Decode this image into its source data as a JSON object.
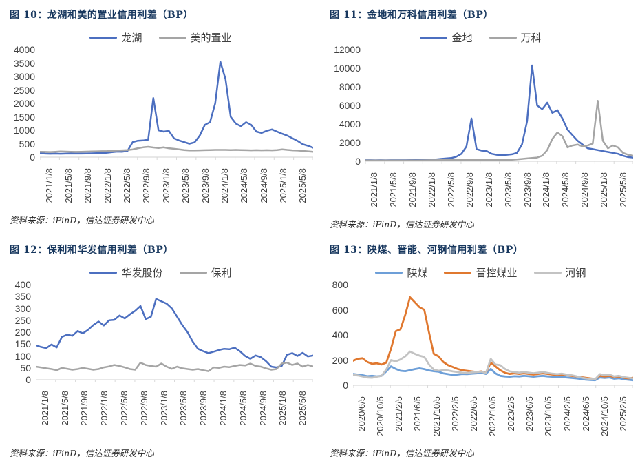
{
  "page": {
    "background": "#FFFFFF"
  },
  "styles": {
    "title_color": "#17375E",
    "axis_line_color": "#D9D9D9",
    "tick_label_color": "#3F3F3F",
    "legend_label_color": "#404040",
    "source_text_color": "#262626"
  },
  "chart_data": [
    {
      "id": "figure-10",
      "type": "line",
      "title": "图 10：龙湖和美的置业信用利差（BP）",
      "source": "资料来源：iFinD，信达证券研发中心",
      "ylabel": "",
      "xlabel": "",
      "ylim": [
        0,
        4000
      ],
      "y_ticks": [
        4000,
        3500,
        3000,
        2500,
        2000,
        1500,
        1000,
        500,
        0
      ],
      "x_labels": [
        "2021/1/8",
        "2021/5/8",
        "2021/9/8",
        "2022/1/8",
        "2022/5/8",
        "2022/9/8",
        "2023/1/8",
        "2023/5/8",
        "2023/9/8",
        "2024/1/8",
        "2024/5/8",
        "2024/9/8",
        "2025/1/8",
        "2025/5/8"
      ],
      "grid": false,
      "legend_position": "top",
      "series": [
        {
          "name": "龙湖",
          "color": "#4C6FC0",
          "values": [
            150,
            130,
            125,
            130,
            125,
            130,
            135,
            130,
            130,
            135,
            140,
            145,
            150,
            165,
            185,
            205,
            200,
            230,
            560,
            610,
            620,
            650,
            2200,
            1000,
            950,
            980,
            700,
            620,
            560,
            500,
            550,
            800,
            1200,
            1300,
            2000,
            3550,
            2900,
            1500,
            1250,
            1150,
            1300,
            1200,
            950,
            900,
            980,
            1030,
            950,
            870,
            800,
            700,
            600,
            480,
            420,
            350
          ]
        },
        {
          "name": "美的置业",
          "color": "#A5A5A5",
          "values": [
            200,
            195,
            190,
            200,
            210,
            205,
            200,
            195,
            200,
            205,
            210,
            215,
            220,
            225,
            235,
            245,
            255,
            265,
            285,
            330,
            365,
            385,
            360,
            340,
            365,
            330,
            310,
            290,
            265,
            250,
            250,
            255,
            260,
            265,
            270,
            270,
            270,
            265,
            270,
            265,
            260,
            255,
            260,
            255,
            260,
            255,
            265,
            290,
            270,
            255,
            245,
            230,
            215,
            200
          ]
        }
      ]
    },
    {
      "id": "figure-11",
      "type": "line",
      "title": "图 11：金地和万科信用利差（BP）",
      "source": "资料来源：iFinD，信达证券研发中心",
      "ylabel": "",
      "xlabel": "",
      "ylim": [
        0,
        12000
      ],
      "y_ticks": [
        12000,
        10000,
        8000,
        6000,
        4000,
        2000,
        0
      ],
      "x_labels": [
        "2021/1/8",
        "2021/5/8",
        "2021/9/8",
        "2022/1/8",
        "2022/5/8",
        "2022/9/8",
        "2023/1/8",
        "2023/5/8",
        "2023/9/8",
        "2024/1/8",
        "2024/5/8",
        "2024/9/8",
        "2025/1/8",
        "2025/5/8"
      ],
      "grid": false,
      "legend_position": "top",
      "series": [
        {
          "name": "金地",
          "color": "#4C6FC0",
          "values": [
            120,
            115,
            110,
            115,
            110,
            115,
            120,
            115,
            120,
            125,
            130,
            140,
            150,
            170,
            200,
            260,
            300,
            350,
            500,
            800,
            1600,
            4600,
            1300,
            1150,
            1100,
            800,
            700,
            650,
            700,
            750,
            900,
            1800,
            4300,
            10300,
            6000,
            5600,
            6300,
            5200,
            5500,
            4600,
            3400,
            2800,
            2200,
            1800,
            1400,
            1300,
            1200,
            1100,
            1000,
            900,
            800,
            600,
            450,
            400
          ]
        },
        {
          "name": "万科",
          "color": "#A5A5A5",
          "values": [
            100,
            95,
            90,
            95,
            90,
            95,
            100,
            95,
            100,
            105,
            100,
            105,
            110,
            115,
            120,
            125,
            130,
            140,
            150,
            160,
            170,
            180,
            170,
            165,
            160,
            150,
            140,
            150,
            160,
            170,
            200,
            250,
            300,
            350,
            400,
            600,
            1200,
            2400,
            3100,
            2700,
            1500,
            1700,
            1800,
            1600,
            1700,
            1900,
            6500,
            2200,
            1400,
            1700,
            1500,
            900,
            700,
            600
          ]
        }
      ]
    },
    {
      "id": "figure-12",
      "type": "line",
      "title": "图 12：保利和华发信用利差（BP）",
      "source": "资料来源：iFinD，信达证券研发中心",
      "ylabel": "",
      "xlabel": "",
      "ylim": [
        0,
        400
      ],
      "y_ticks": [
        400,
        350,
        300,
        250,
        200,
        150,
        100,
        50,
        0
      ],
      "x_labels": [
        "2021/1/8",
        "2021/5/8",
        "2021/9/8",
        "2022/1/8",
        "2022/5/8",
        "2022/9/8",
        "2023/1/8",
        "2023/5/8",
        "2023/9/8",
        "2024/1/8",
        "2024/5/8",
        "2024/9/8",
        "2025/1/8",
        "2025/5/8"
      ],
      "grid": false,
      "legend_position": "top",
      "series": [
        {
          "name": "华发股份",
          "color": "#4C6FC0",
          "values": [
            145,
            138,
            133,
            148,
            136,
            180,
            190,
            185,
            205,
            195,
            210,
            230,
            245,
            228,
            250,
            252,
            270,
            258,
            275,
            290,
            310,
            255,
            265,
            340,
            330,
            320,
            300,
            265,
            230,
            200,
            160,
            130,
            120,
            112,
            118,
            125,
            130,
            128,
            135,
            120,
            100,
            88,
            102,
            95,
            78,
            55,
            52,
            58,
            105,
            112,
            100,
            113,
            98,
            102
          ]
        },
        {
          "name": "保利",
          "color": "#A5A5A5",
          "values": [
            55,
            52,
            48,
            45,
            40,
            50,
            46,
            42,
            45,
            50,
            46,
            42,
            45,
            52,
            56,
            62,
            58,
            52,
            45,
            42,
            72,
            62,
            58,
            55,
            68,
            55,
            46,
            55,
            48,
            45,
            42,
            45,
            40,
            36,
            52,
            50,
            55,
            53,
            58,
            62,
            60,
            68,
            58,
            55,
            48,
            42,
            45,
            68,
            72,
            62,
            68,
            55,
            62,
            56
          ]
        }
      ]
    },
    {
      "id": "figure-13",
      "type": "line",
      "title": "图 13：陕煤、晋能、河钢信用利差（BP）",
      "source": "资料来源：iFinD，信达证券研发中心",
      "ylabel": "",
      "xlabel": "",
      "ylim": [
        0,
        800
      ],
      "y_ticks": [
        800,
        600,
        400,
        200,
        0
      ],
      "x_labels": [
        "2020/6/5",
        "2020/10/5",
        "2021/2/5",
        "2021/6/5",
        "2021/10/5",
        "2022/2/5",
        "2022/6/5",
        "2022/10/5",
        "2023/2/5",
        "2023/6/5",
        "2023/10/5",
        "2024/2/5",
        "2024/6/5",
        "2024/10/5",
        "2025/2/5"
      ],
      "grid": false,
      "legend_position": "top",
      "series": [
        {
          "name": "陕煤",
          "color": "#6D9FD8",
          "values": [
            90,
            85,
            80,
            72,
            75,
            70,
            75,
            110,
            150,
            130,
            115,
            112,
            120,
            128,
            135,
            128,
            118,
            112,
            108,
            95,
            88,
            82,
            85,
            90,
            88,
            92,
            95,
            100,
            90,
            130,
            95,
            75,
            70,
            68,
            72,
            70,
            75,
            72,
            68,
            72,
            75,
            70,
            68,
            65,
            68,
            62,
            58,
            55,
            50,
            45,
            42,
            40,
            62,
            58,
            62,
            52,
            56,
            48,
            44,
            40
          ]
        },
        {
          "name": "晋控煤业",
          "color": "#E0782F",
          "values": [
            195,
            210,
            215,
            185,
            170,
            175,
            165,
            180,
            290,
            430,
            445,
            560,
            700,
            660,
            620,
            600,
            420,
            250,
            230,
            185,
            160,
            145,
            130,
            120,
            115,
            110,
            105,
            110,
            100,
            180,
            150,
            120,
            100,
            90,
            95,
            90,
            95,
            90,
            85,
            90,
            95,
            90,
            85,
            80,
            85,
            80,
            75,
            70,
            65,
            60,
            55,
            50,
            75,
            70,
            75,
            65,
            70,
            60,
            55,
            60
          ]
        },
        {
          "name": "河钢",
          "color": "#C3C3C3",
          "values": [
            82,
            78,
            70,
            62,
            60,
            68,
            75,
            125,
            200,
            190,
            205,
            230,
            268,
            250,
            235,
            225,
            165,
            125,
            115,
            120,
            118,
            110,
            105,
            100,
            98,
            102,
            105,
            108,
            98,
            210,
            165,
            160,
            130,
            110,
            105,
            100,
            105,
            100,
            95,
            100,
            105,
            98,
            92,
            88,
            92,
            85,
            80,
            72,
            62,
            55,
            50,
            48,
            88,
            80,
            85,
            70,
            75,
            65,
            60,
            55
          ]
        }
      ]
    }
  ]
}
